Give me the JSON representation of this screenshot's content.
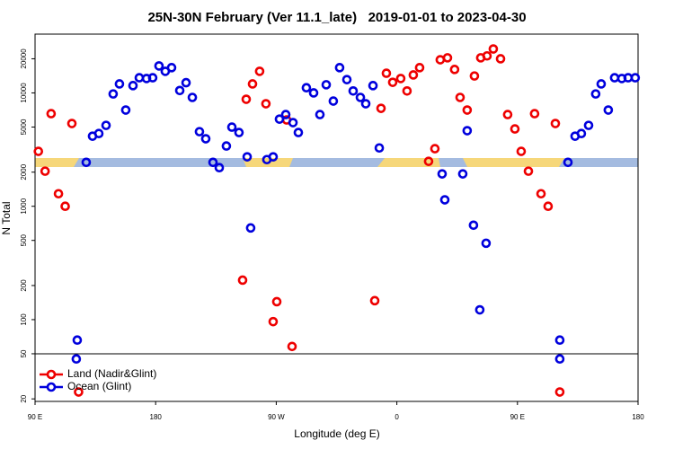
{
  "chart_data": {
    "type": "scatter",
    "title": "25N-30N February (Ver 11.1_late)   2019-01-01 to 2023-04-30",
    "xlabel": "Longitude (deg E)",
    "ylabel": "N Total",
    "xlim": [
      90,
      540
    ],
    "xticks": [
      {
        "value": 90,
        "label": "90 E"
      },
      {
        "value": 180,
        "label": "180"
      },
      {
        "value": 270,
        "label": "90 W"
      },
      {
        "value": 360,
        "label": "0"
      },
      {
        "value": 450,
        "label": "90 E"
      },
      {
        "value": 540,
        "label": "180"
      }
    ],
    "ylim": [
      19,
      33000
    ],
    "log_y": true,
    "yticks": [
      20,
      50,
      100,
      200,
      500,
      1000,
      2000,
      5000,
      10000,
      20000
    ],
    "reference_line": 50,
    "legend": "lower left",
    "series": [
      {
        "name": "Land (Nadir&Glint)",
        "color": "#ee0000",
        "x": [
          92.5,
          97.5,
          102,
          107.5,
          112.5,
          117.5,
          122.5,
          244.9,
          247.6,
          252.3,
          257.6,
          262.3,
          267.7,
          270.4,
          277.8,
          281.8,
          343.5,
          348.2,
          352.2,
          356.9,
          362.9,
          367.6,
          372.3,
          377,
          383.7,
          388.4,
          392.4,
          397.8,
          403.1,
          407.2,
          412.5,
          417.9,
          422.6,
          427.3,
          432,
          437.4,
          442.7,
          448.1,
          452.8,
          458.2,
          462.8,
          467.6,
          472.9,
          478.3,
          481.6
        ],
        "values": [
          3050,
          2040,
          6560,
          1290,
          1000,
          5370,
          23,
          223,
          8790,
          12000,
          15500,
          8020,
          96,
          144,
          5770,
          58,
          147,
          7310,
          14900,
          12400,
          13400,
          10400,
          14400,
          16700,
          2490,
          3220,
          19600,
          20400,
          16100,
          9120,
          7060,
          14100,
          20400,
          21200,
          24400,
          20000,
          6440,
          4810,
          3050,
          2040,
          6560,
          1290,
          1000,
          5370,
          23
        ]
      },
      {
        "name": "Ocean (Glint)",
        "color": "#0000dd",
        "x": [
          120.8,
          121.5,
          128.2,
          132.9,
          137.6,
          143,
          148.3,
          153,
          157.7,
          163.1,
          167.8,
          173.2,
          177.8,
          182.5,
          187.2,
          191.9,
          198,
          202.7,
          207.4,
          212.7,
          217.4,
          222.8,
          227.5,
          232.8,
          236.9,
          242.2,
          248.3,
          250.9,
          263,
          267.7,
          272.4,
          277.1,
          282.5,
          286.5,
          292.5,
          297.9,
          302.6,
          307.3,
          312.6,
          317.3,
          322.7,
          327.4,
          332.8,
          336.8,
          342.2,
          346.9,
          393.8,
          395.8,
          409.2,
          412.5,
          417.2,
          421.9,
          426.6,
          487.7,
          481.6,
          481.6,
          493,
          497.7,
          503.1,
          508.4,
          512.5,
          517.8,
          522.5,
          527.9,
          532.6,
          537.9
        ],
        "values": [
          45,
          66,
          2440,
          4150,
          4380,
          5170,
          9790,
          12000,
          7060,
          11600,
          13600,
          13400,
          13600,
          17300,
          15500,
          16700,
          10500,
          12300,
          9120,
          4550,
          3940,
          2440,
          2190,
          3400,
          4990,
          4470,
          2730,
          644,
          2580,
          2730,
          5870,
          6440,
          5470,
          4470,
          11100,
          10000,
          6440,
          11800,
          8470,
          16700,
          13100,
          10400,
          9120,
          8020,
          11600,
          3270,
          1930,
          1140,
          1930,
          4640,
          681,
          122,
          472,
          2440,
          45,
          66,
          4150,
          4380,
          5170,
          9790,
          12000,
          7060,
          13600,
          13400,
          13600,
          13600
        ]
      }
    ]
  }
}
